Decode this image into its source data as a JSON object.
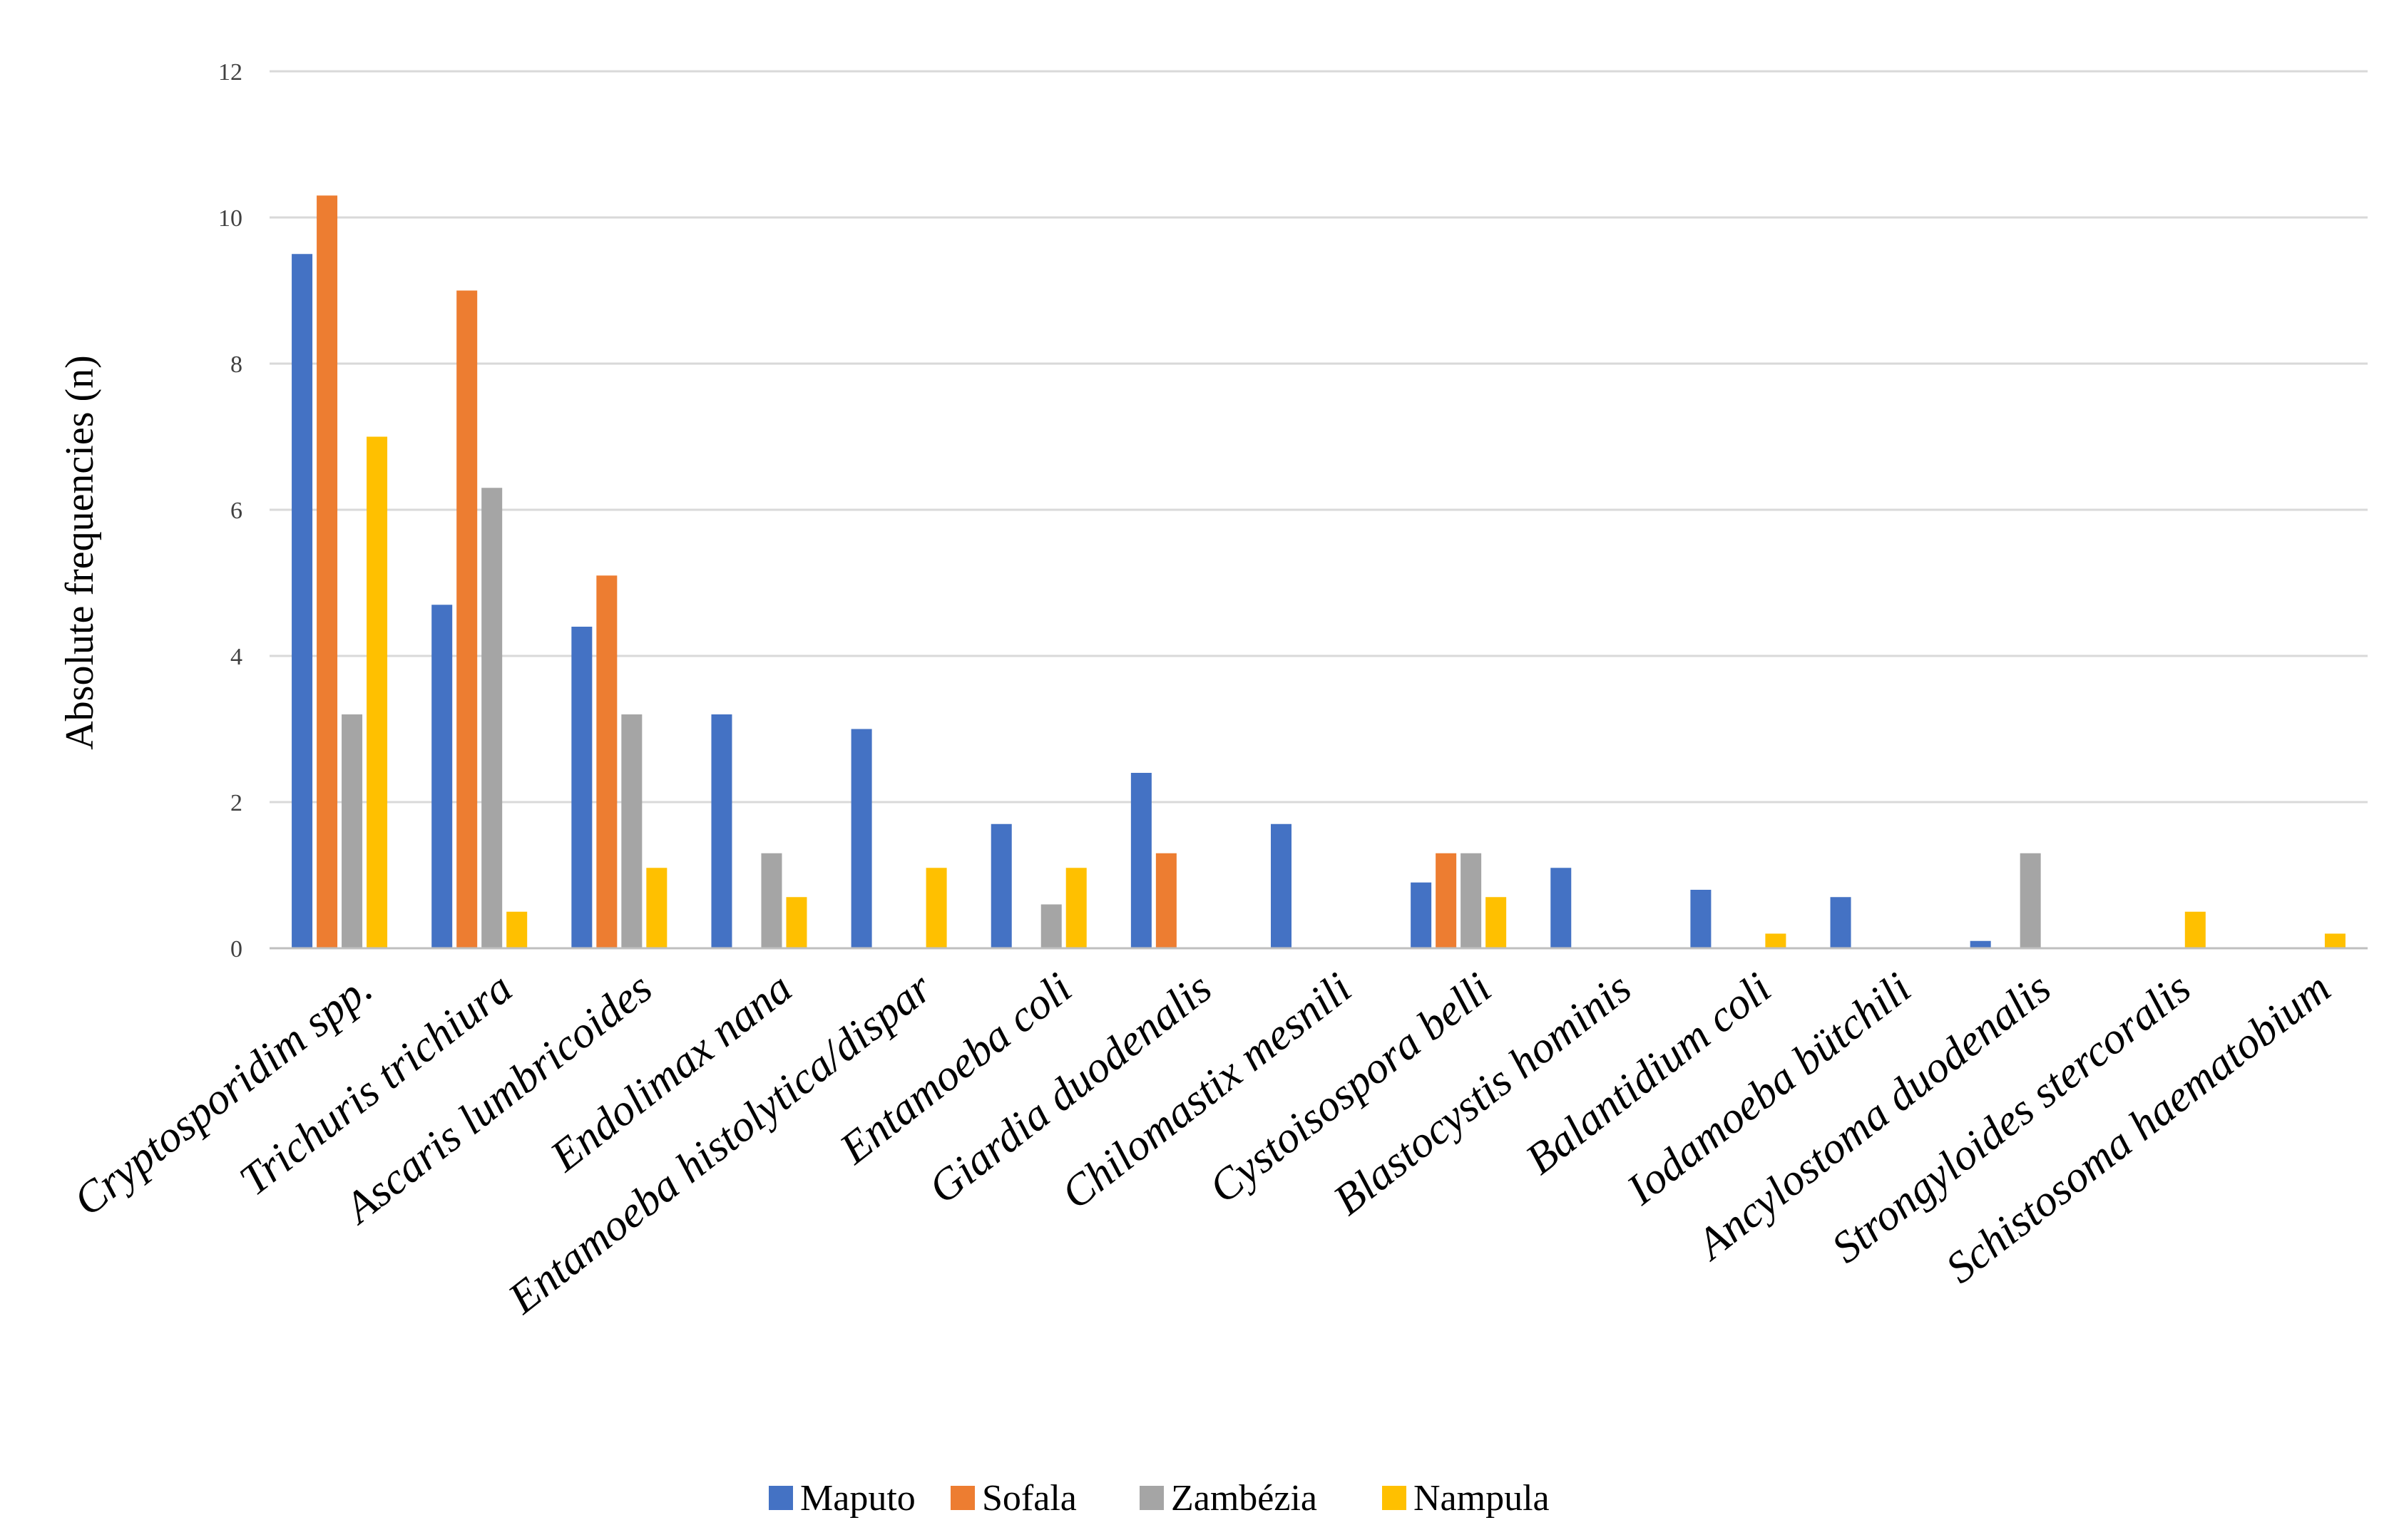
{
  "chart_data": {
    "type": "bar",
    "title": "",
    "xlabel": "",
    "ylabel": "Absolute frequencies (n)",
    "ylim": [
      0,
      12
    ],
    "yticks": [
      "0",
      "2",
      "4",
      "6",
      "8",
      "10",
      "12"
    ],
    "grid": true,
    "legend_position": "bottom",
    "categories": [
      "Cryptosporidim spp.",
      "Trichuris trichiura",
      "Ascaris lumbricoides",
      "Endolimax nana",
      "Entamoeba histolytica/dispar",
      "Entamoeba coli",
      "Giardia duodenalis",
      "Chilomastix mesnili",
      "Cystoisospora belli",
      "Blastocystis hominis",
      "Balantidium coli",
      "Iodamoeba bütchili",
      "Ancylostoma duodenalis",
      "Strongyloides stercoralis",
      "Schistosoma haematobium"
    ],
    "series": [
      {
        "name": "Maputo",
        "color": "#4472c4",
        "values": [
          9.5,
          4.7,
          4.4,
          3.2,
          3.0,
          1.7,
          2.4,
          1.7,
          0.9,
          1.1,
          0.8,
          0.7,
          0.1,
          0,
          0
        ]
      },
      {
        "name": "Sofala",
        "color": "#ed7d31",
        "values": [
          10.3,
          9.0,
          5.1,
          0,
          0,
          0,
          1.3,
          0,
          1.3,
          0,
          0,
          0,
          0,
          0,
          0
        ]
      },
      {
        "name": "Zambézia",
        "color": "#a5a5a5",
        "values": [
          3.2,
          6.3,
          3.2,
          1.3,
          0,
          0.6,
          0,
          0,
          1.3,
          0,
          0,
          0,
          1.3,
          0,
          0
        ]
      },
      {
        "name": "Nampula",
        "color": "#ffc000",
        "values": [
          7.0,
          0.5,
          1.1,
          0.7,
          1.1,
          1.1,
          0,
          0,
          0.7,
          0,
          0.2,
          0,
          0,
          0.5,
          0.2
        ]
      }
    ]
  }
}
